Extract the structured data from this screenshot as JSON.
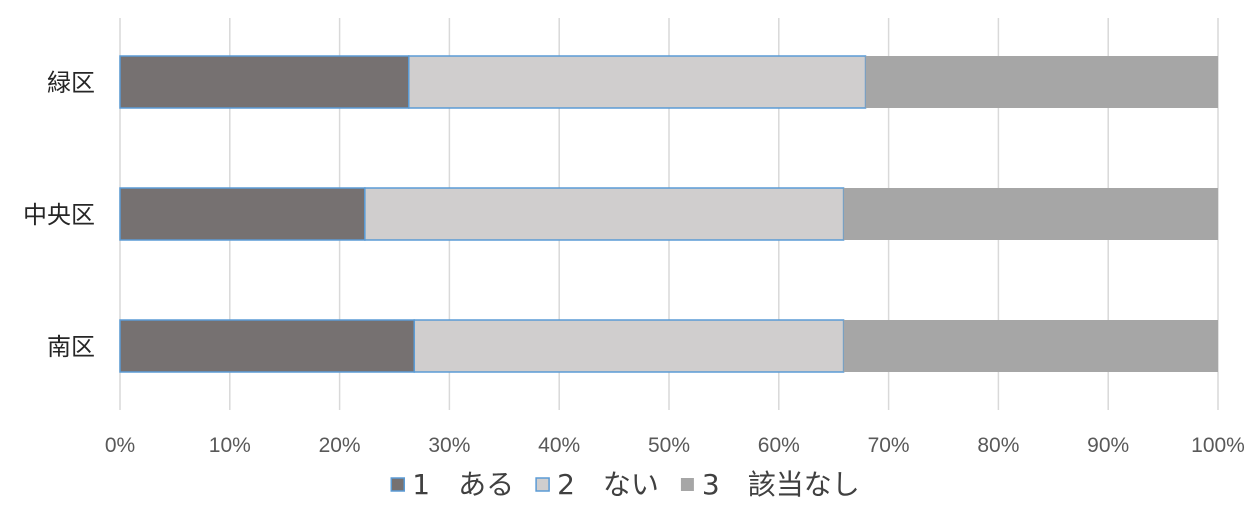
{
  "chart_data": {
    "type": "bar",
    "orientation": "horizontal",
    "stacked": "percent",
    "title": "",
    "xlabel": "",
    "ylabel": "",
    "categories": [
      "緑区",
      "中央区",
      "南区"
    ],
    "series": [
      {
        "name": "1　ある",
        "color": "#767171",
        "border": "#5b9bd5",
        "values": [
          26.3,
          22.3,
          26.8
        ]
      },
      {
        "name": "2　ない",
        "color": "#d0cece",
        "border": "#5b9bd5",
        "values": [
          41.6,
          43.6,
          39.1
        ]
      },
      {
        "name": "3　該当なし",
        "color": "#a6a6a6",
        "border": "",
        "values": [
          32.1,
          34.1,
          34.1
        ]
      }
    ],
    "xticks": [
      "0%",
      "10%",
      "20%",
      "30%",
      "40%",
      "50%",
      "60%",
      "70%",
      "80%",
      "90%",
      "100%"
    ],
    "xlim": [
      0,
      100
    ],
    "grid": true,
    "legend_position": "bottom"
  }
}
